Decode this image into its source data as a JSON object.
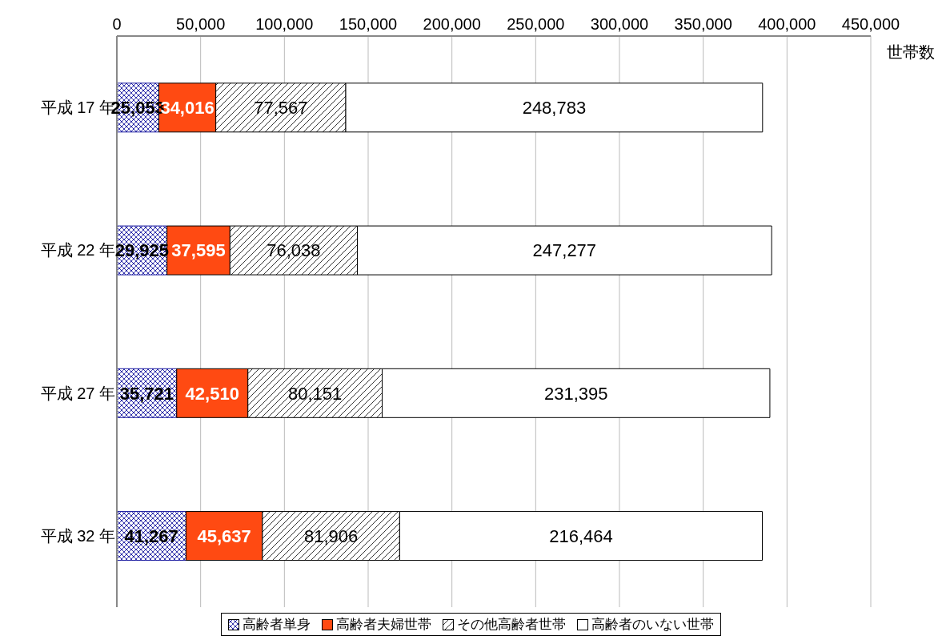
{
  "chart_data": {
    "type": "bar",
    "orientation": "horizontal",
    "stacked": true,
    "categories": [
      "平成 17 年",
      "平成 22 年",
      "平成 27 年",
      "平成 32 年"
    ],
    "series": [
      {
        "name": "高齢者単身",
        "color": "#1a1aa0",
        "values": [
          25053,
          29925,
          35721,
          41267
        ],
        "value_labels": [
          "25,053",
          "29,925",
          "35,721",
          "41,267"
        ]
      },
      {
        "name": "高齢者夫婦世帯",
        "color": "#ff4a12",
        "values": [
          34016,
          37595,
          42510,
          45637
        ],
        "value_labels": [
          "34,016",
          "37,595",
          "42,510",
          "45,637"
        ]
      },
      {
        "name": "その他高齢者世帯",
        "color": "#000000",
        "values": [
          77567,
          76038,
          80151,
          81906
        ],
        "value_labels": [
          "77,567",
          "76,038",
          "80,151",
          "81,906"
        ]
      },
      {
        "name": "高齢者のいない世帯",
        "color": "#ffffff",
        "values": [
          248783,
          247277,
          231395,
          216464
        ],
        "value_labels": [
          "248,783",
          "247,277",
          "231,395",
          "216,464"
        ]
      }
    ],
    "xlim": [
      0,
      450000
    ],
    "xticks": [
      0,
      {
        "value": 50000,
        "label": "50,000"
      },
      {
        "value": 100000,
        "label": "100,000"
      },
      {
        "value": 150000,
        "label": "150,000"
      },
      {
        "value": 200000,
        "label": "200,000"
      },
      {
        "value": 250000,
        "label": "250,000"
      },
      {
        "value": 300000,
        "label": "300,000"
      },
      {
        "value": 350000,
        "label": "350,000"
      },
      {
        "value": 400000,
        "label": "400,000"
      },
      {
        "value": 450000,
        "label": "450,000"
      }
    ],
    "xlabel": "世帯数",
    "grid": "x",
    "legend": "bottom"
  }
}
